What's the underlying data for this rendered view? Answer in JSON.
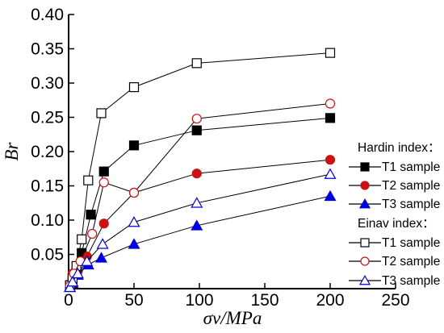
{
  "chart_data": {
    "type": "line",
    "title": "",
    "xlabel": "σv/MPa",
    "ylabel": "Br",
    "xlim": [
      0,
      250
    ],
    "ylim": [
      0,
      0.4
    ],
    "xticks": [
      0,
      50,
      100,
      150,
      200,
      250
    ],
    "yticks": [
      0.05,
      0.1,
      0.15,
      0.2,
      0.25,
      0.3,
      0.35,
      0.4
    ],
    "x_tick_labels": [
      "0",
      "50",
      "100",
      "150",
      "200",
      "250"
    ],
    "y_tick_labels": [
      "0.05",
      "0.10",
      "0.15",
      "0.20",
      "0.25",
      "0.30",
      "0.35",
      "0.40"
    ],
    "grid": false,
    "legend_placement": "right",
    "legend_groups": [
      {
        "label": "Hardin index：",
        "series_indices": [
          0,
          1,
          2
        ]
      },
      {
        "label": "Einav index：",
        "series_indices": [
          3,
          4,
          5
        ]
      }
    ],
    "series": [
      {
        "name": "T1 sample",
        "group": "Hardin",
        "marker": "square",
        "filled": true,
        "color": "#000000",
        "points": [
          [
            1,
            0.005
          ],
          [
            3,
            0.012
          ],
          [
            6,
            0.025
          ],
          [
            10,
            0.052
          ],
          [
            17,
            0.108
          ],
          [
            27,
            0.171
          ],
          [
            50,
            0.209
          ],
          [
            98,
            0.231
          ],
          [
            200,
            0.249
          ]
        ]
      },
      {
        "name": "T2 sample",
        "group": "Hardin",
        "marker": "circle",
        "filled": true,
        "color": "#cc1111",
        "points": [
          [
            1,
            0.004
          ],
          [
            3,
            0.022
          ],
          [
            7,
            0.025
          ],
          [
            14,
            0.047
          ],
          [
            27,
            0.095
          ],
          [
            50,
            0.14
          ],
          [
            98,
            0.168
          ],
          [
            200,
            0.188
          ]
        ]
      },
      {
        "name": "T3 sample",
        "group": "Hardin",
        "marker": "triangle",
        "filled": true,
        "color": "#0000dd",
        "points": [
          [
            1,
            0.002
          ],
          [
            3,
            0.008
          ],
          [
            7,
            0.02
          ],
          [
            15,
            0.035
          ],
          [
            25,
            0.045
          ],
          [
            50,
            0.065
          ],
          [
            98,
            0.092
          ],
          [
            200,
            0.135
          ]
        ]
      },
      {
        "name": "T1 sample",
        "group": "Einav",
        "marker": "square",
        "filled": false,
        "color": "#000000",
        "points": [
          [
            1,
            0.005
          ],
          [
            3,
            0.015
          ],
          [
            6,
            0.033
          ],
          [
            10,
            0.072
          ],
          [
            15,
            0.158
          ],
          [
            25,
            0.256
          ],
          [
            50,
            0.294
          ],
          [
            98,
            0.329
          ],
          [
            200,
            0.344
          ]
        ]
      },
      {
        "name": "T2 sample",
        "group": "Einav",
        "marker": "circle",
        "filled": false,
        "color": "#cc1111",
        "points": [
          [
            1,
            0.004
          ],
          [
            4,
            0.022
          ],
          [
            9,
            0.04
          ],
          [
            18,
            0.08
          ],
          [
            27,
            0.155
          ],
          [
            50,
            0.14
          ],
          [
            98,
            0.248
          ],
          [
            200,
            0.27
          ]
        ]
      },
      {
        "name": "T3 sample",
        "group": "Einav",
        "marker": "triangle",
        "filled": false,
        "color": "#0000dd",
        "points": [
          [
            1,
            0.002
          ],
          [
            3,
            0.01
          ],
          [
            7,
            0.022
          ],
          [
            14,
            0.04
          ],
          [
            26,
            0.065
          ],
          [
            50,
            0.097
          ],
          [
            98,
            0.125
          ],
          [
            200,
            0.167
          ]
        ]
      }
    ]
  }
}
